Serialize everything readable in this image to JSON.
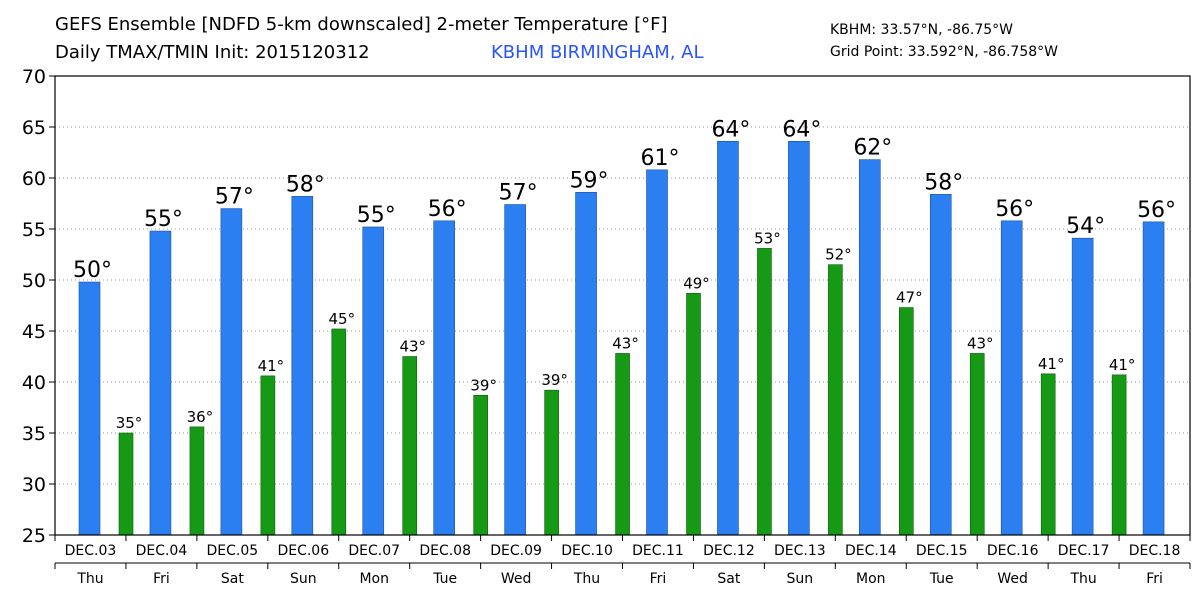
{
  "header": {
    "title_line1": "GEFS Ensemble [NDFD 5-km downscaled] 2-meter Temperature [°F]",
    "title_line2": "Daily TMAX/TMIN Init: 2015120312",
    "location": "KBHM BIRMINGHAM, AL",
    "station_coords": "KBHM: 33.57°N, -86.75°W",
    "grid_point": "Grid Point: 33.592°N, -86.758°W"
  },
  "chart_data": {
    "type": "bar",
    "ylim": [
      25,
      70
    ],
    "yticks": [
      25,
      30,
      35,
      40,
      45,
      50,
      55,
      60,
      65,
      70
    ],
    "grid": "horizontal dotted",
    "colors": {
      "tmax": "#2b7ff0",
      "tmin": "#169a16"
    },
    "categories": [
      "DEC.03",
      "DEC.04",
      "DEC.05",
      "DEC.06",
      "DEC.07",
      "DEC.08",
      "DEC.09",
      "DEC.10",
      "DEC.11",
      "DEC.12",
      "DEC.13",
      "DEC.14",
      "DEC.15",
      "DEC.16",
      "DEC.17",
      "DEC.18"
    ],
    "weekdays": [
      "Thu",
      "Fri",
      "Sat",
      "Sun",
      "Mon",
      "Tue",
      "Wed",
      "Thu",
      "Fri",
      "Sat",
      "Sun",
      "Mon",
      "Tue",
      "Wed",
      "Thu",
      "Fri"
    ],
    "tmax": [
      {
        "value": 49.8,
        "label": "50°"
      },
      {
        "value": 54.8,
        "label": "55°"
      },
      {
        "value": 57.0,
        "label": "57°"
      },
      {
        "value": 58.2,
        "label": "58°"
      },
      {
        "value": 55.2,
        "label": "55°"
      },
      {
        "value": 55.8,
        "label": "56°"
      },
      {
        "value": 57.4,
        "label": "57°"
      },
      {
        "value": 58.6,
        "label": "59°"
      },
      {
        "value": 60.8,
        "label": "61°"
      },
      {
        "value": 63.6,
        "label": "64°"
      },
      {
        "value": 63.6,
        "label": "64°"
      },
      {
        "value": 61.8,
        "label": "62°"
      },
      {
        "value": 58.4,
        "label": "58°"
      },
      {
        "value": 55.8,
        "label": "56°"
      },
      {
        "value": 54.1,
        "label": "54°"
      },
      {
        "value": 55.7,
        "label": "56°"
      }
    ],
    "tmin": [
      {
        "value": 35.0,
        "label": "35°"
      },
      {
        "value": 35.6,
        "label": "36°"
      },
      {
        "value": 40.6,
        "label": "41°"
      },
      {
        "value": 45.2,
        "label": "45°"
      },
      {
        "value": 42.5,
        "label": "43°"
      },
      {
        "value": 38.7,
        "label": "39°"
      },
      {
        "value": 39.2,
        "label": "39°"
      },
      {
        "value": 42.8,
        "label": "43°"
      },
      {
        "value": 48.7,
        "label": "49°"
      },
      {
        "value": 53.1,
        "label": "53°"
      },
      {
        "value": 51.5,
        "label": "52°"
      },
      {
        "value": 47.3,
        "label": "47°"
      },
      {
        "value": 42.8,
        "label": "43°"
      },
      {
        "value": 40.8,
        "label": "41°"
      },
      {
        "value": 40.7,
        "label": "41°"
      }
    ]
  }
}
